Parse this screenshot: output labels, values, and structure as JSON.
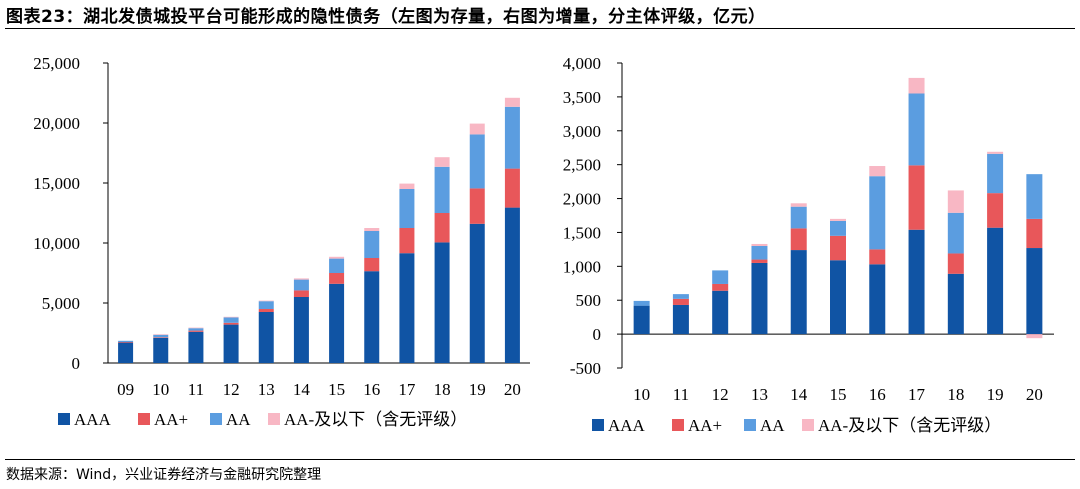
{
  "title": "图表23：湖北发债城投平台可能形成的隐性债务（左图为存量，右图为增量，分主体评级，亿元）",
  "source": "数据来源：Wind，兴业证券经济与金融研究院整理",
  "colors": {
    "AAA": "#1054a4",
    "AA+": "#e8575a",
    "AA": "#5b9de0",
    "AA-及以下": "#f8b7c4"
  },
  "chart_data": [
    {
      "type": "bar",
      "stacked": true,
      "panel": "left",
      "categories": [
        "09",
        "10",
        "11",
        "12",
        "13",
        "14",
        "15",
        "16",
        "17",
        "18",
        "19",
        "20"
      ],
      "ylim": [
        0,
        25000
      ],
      "yticks": [
        "0",
        "5,000",
        "10,000",
        "15,000",
        "20,000",
        "25,000"
      ],
      "ytick_values": [
        0,
        5000,
        10000,
        15000,
        20000,
        25000
      ],
      "series": [
        {
          "name": "AAA",
          "values": [
            1700,
            2100,
            2600,
            3200,
            4250,
            5500,
            6600,
            7650,
            9150,
            10050,
            11600,
            12950
          ]
        },
        {
          "name": "AA+",
          "values": [
            50,
            50,
            100,
            150,
            250,
            550,
            900,
            1100,
            2100,
            2450,
            2950,
            3250
          ]
        },
        {
          "name": "AA",
          "values": [
            100,
            200,
            200,
            450,
            650,
            900,
            1200,
            2250,
            3250,
            3850,
            4500,
            5150
          ]
        },
        {
          "name": "AA-及以下",
          "values": [
            0,
            50,
            50,
            50,
            50,
            100,
            150,
            250,
            450,
            800,
            900,
            750
          ]
        }
      ]
    },
    {
      "type": "bar",
      "stacked": true,
      "panel": "right",
      "categories": [
        "10",
        "11",
        "12",
        "13",
        "14",
        "15",
        "16",
        "17",
        "18",
        "19",
        "20"
      ],
      "ylim": [
        -500,
        4000
      ],
      "yticks": [
        "-500",
        "0",
        "500",
        "1,000",
        "1,500",
        "2,000",
        "2,500",
        "3,000",
        "3,500",
        "4,000"
      ],
      "ytick_values": [
        -500,
        0,
        500,
        1000,
        1500,
        2000,
        2500,
        3000,
        3500,
        4000
      ],
      "series": [
        {
          "name": "AAA",
          "values": [
            420,
            430,
            640,
            1050,
            1240,
            1090,
            1030,
            1540,
            890,
            1570,
            1270
          ]
        },
        {
          "name": "AA+",
          "values": [
            0,
            90,
            100,
            50,
            320,
            360,
            220,
            950,
            300,
            510,
            430
          ]
        },
        {
          "name": "AA",
          "values": [
            70,
            70,
            200,
            200,
            320,
            220,
            1080,
            1060,
            600,
            580,
            660
          ]
        },
        {
          "name": "AA-及以下",
          "values": [
            0,
            0,
            0,
            30,
            50,
            30,
            150,
            230,
            330,
            30,
            -60
          ]
        }
      ]
    }
  ]
}
